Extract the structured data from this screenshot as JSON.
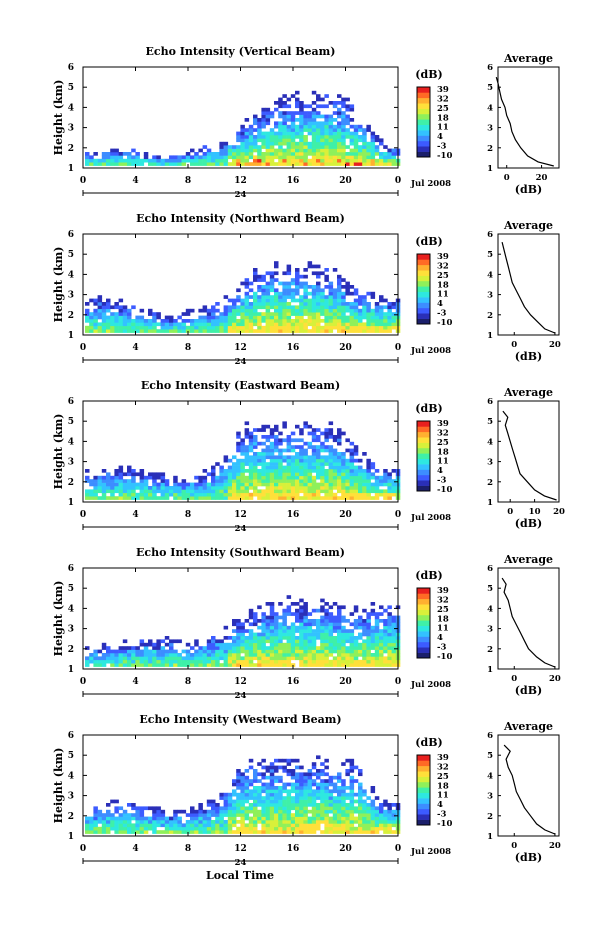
{
  "colors": {
    "colormap": [
      "#1b1f6b",
      "#2a2fb8",
      "#3c5bff",
      "#3d8dff",
      "#33c2ff",
      "#2ee8e0",
      "#3ff0a8",
      "#8ff05a",
      "#d8f03a",
      "#ffe03a",
      "#ffb030",
      "#ff6a25",
      "#e8201e"
    ],
    "axis": "#000000"
  },
  "footer": {
    "xlabel": "Local Time"
  },
  "chart_data": [
    {
      "type": "heatmap",
      "title": "Echo Intensity (Vertical Beam)",
      "ylabel": "Height (km)",
      "ylim": [
        1,
        6
      ],
      "yticks": [
        1,
        2,
        3,
        4,
        5,
        6
      ],
      "xlim": [
        0,
        24
      ],
      "xticks": [
        "0",
        "4",
        "8",
        "12",
        "16",
        "20",
        "0"
      ],
      "date_label": "24",
      "month_label": "Jul 2008",
      "colorbar": {
        "unit": "(dB)",
        "ticks": [
          "39",
          "32",
          "25",
          "18",
          "11",
          "4",
          "-3",
          "-10"
        ]
      },
      "echo_top_km": [
        1.7,
        1.8,
        1.9,
        2.0,
        1.8,
        1.6,
        1.5,
        1.6,
        1.8,
        2.0,
        2.2,
        2.6,
        3.2,
        3.8,
        4.0,
        4.5,
        4.7,
        4.6,
        4.9,
        4.7,
        4.4,
        3.5,
        2.8,
        2.0
      ],
      "average_profile": {
        "title": "Average",
        "xlabel": "(dB)",
        "xlim": [
          -5,
          30
        ],
        "xticks": [
          0,
          20
        ],
        "ylim": [
          1,
          6
        ],
        "yticks": [
          1,
          2,
          3,
          4,
          5,
          6
        ],
        "heights_km": [
          1.1,
          1.3,
          1.6,
          2.0,
          2.4,
          2.8,
          3.2,
          3.6,
          4.0,
          4.4,
          4.8,
          5.2,
          5.5
        ],
        "values_db": [
          27,
          18,
          12,
          8,
          5,
          3,
          2,
          0,
          -1,
          -3,
          -4,
          -5,
          -6
        ]
      }
    },
    {
      "type": "heatmap",
      "title": "Echo Intensity (Northward Beam)",
      "ylabel": "Height (km)",
      "ylim": [
        1,
        6
      ],
      "yticks": [
        1,
        2,
        3,
        4,
        5,
        6
      ],
      "xlim": [
        0,
        24
      ],
      "xticks": [
        "0",
        "4",
        "8",
        "12",
        "16",
        "20",
        "0"
      ],
      "date_label": "24",
      "month_label": "Jul 2008",
      "colorbar": {
        "unit": "(dB)",
        "ticks": [
          "39",
          "32",
          "25",
          "18",
          "11",
          "4",
          "-3",
          "-10"
        ]
      },
      "echo_top_km": [
        2.8,
        2.9,
        3.0,
        2.6,
        2.4,
        2.2,
        1.9,
        2.0,
        2.2,
        2.3,
        2.6,
        3.0,
        3.6,
        4.2,
        4.4,
        4.6,
        4.7,
        4.5,
        4.4,
        4.2,
        3.6,
        3.2,
        3.0,
        2.8
      ],
      "average_profile": {
        "title": "Average",
        "xlabel": "(dB)",
        "xlim": [
          -8,
          22
        ],
        "xticks": [
          0,
          20
        ],
        "ylim": [
          1,
          6
        ],
        "yticks": [
          1,
          2,
          3,
          4,
          5,
          6
        ],
        "heights_km": [
          1.1,
          1.3,
          1.6,
          2.0,
          2.4,
          2.8,
          3.2,
          3.6,
          4.0,
          4.4,
          4.8,
          5.2,
          5.6
        ],
        "values_db": [
          20,
          15,
          12,
          8,
          5,
          3,
          1,
          -1,
          -2,
          -3,
          -4,
          -5,
          -6
        ]
      }
    },
    {
      "type": "heatmap",
      "title": "Echo Intensity (Eastward Beam)",
      "ylabel": "Height (km)",
      "ylim": [
        1,
        6
      ],
      "yticks": [
        1,
        2,
        3,
        4,
        5,
        6
      ],
      "xlim": [
        0,
        24
      ],
      "xticks": [
        "0",
        "4",
        "8",
        "12",
        "16",
        "20",
        "0"
      ],
      "date_label": "24",
      "month_label": "Jul 2008",
      "colorbar": {
        "unit": "(dB)",
        "ticks": [
          "39",
          "32",
          "25",
          "18",
          "11",
          "4",
          "-3",
          "-10"
        ]
      },
      "echo_top_km": [
        2.5,
        2.6,
        2.7,
        2.8,
        2.6,
        2.4,
        2.3,
        2.2,
        2.3,
        2.5,
        2.8,
        3.5,
        4.8,
        5.0,
        4.8,
        4.9,
        5.0,
        4.9,
        5.0,
        4.8,
        4.2,
        3.5,
        2.9,
        2.6
      ],
      "average_profile": {
        "title": "Average",
        "xlabel": "(dB)",
        "xlim": [
          -5,
          20
        ],
        "xticks": [
          0,
          10,
          20
        ],
        "ylim": [
          1,
          6
        ],
        "yticks": [
          1,
          2,
          3,
          4,
          5,
          6
        ],
        "heights_km": [
          1.1,
          1.3,
          1.6,
          2.0,
          2.4,
          2.8,
          3.2,
          3.6,
          4.0,
          4.4,
          4.8,
          5.2,
          5.5
        ],
        "values_db": [
          19,
          14,
          10,
          7,
          4,
          3,
          2,
          1,
          0,
          -1,
          -2,
          -1,
          -3
        ]
      }
    },
    {
      "type": "heatmap",
      "title": "Echo Intensity (Southward Beam)",
      "ylabel": "Height (km)",
      "ylim": [
        1,
        6
      ],
      "yticks": [
        1,
        2,
        3,
        4,
        5,
        6
      ],
      "xlim": [
        0,
        24
      ],
      "xticks": [
        "0",
        "4",
        "8",
        "12",
        "16",
        "20",
        "0"
      ],
      "date_label": "24",
      "month_label": "Jul 2008",
      "colorbar": {
        "unit": "(dB)",
        "ticks": [
          "39",
          "32",
          "25",
          "18",
          "11",
          "4",
          "-3",
          "-10"
        ]
      },
      "echo_top_km": [
        2.0,
        2.1,
        2.2,
        2.3,
        2.4,
        2.6,
        2.5,
        2.4,
        2.3,
        2.4,
        2.8,
        3.2,
        3.6,
        4.0,
        4.2,
        4.5,
        4.6,
        4.4,
        4.5,
        4.3,
        4.1,
        4.0,
        4.2,
        4.3
      ],
      "average_profile": {
        "title": "Average",
        "xlabel": "(dB)",
        "xlim": [
          -8,
          22
        ],
        "xticks": [
          0,
          20
        ],
        "ylim": [
          1,
          6
        ],
        "yticks": [
          1,
          2,
          3,
          4,
          5,
          6
        ],
        "heights_km": [
          1.1,
          1.3,
          1.6,
          2.0,
          2.4,
          2.8,
          3.2,
          3.6,
          4.0,
          4.4,
          4.8,
          5.2,
          5.5
        ],
        "values_db": [
          20,
          15,
          11,
          7,
          5,
          3,
          1,
          -1,
          -2,
          -3,
          -5,
          -4,
          -6
        ]
      }
    },
    {
      "type": "heatmap",
      "title": "Echo Intensity (Westward Beam)",
      "ylabel": "Height (km)",
      "ylim": [
        1,
        6
      ],
      "yticks": [
        1,
        2,
        3,
        4,
        5,
        6
      ],
      "xlim": [
        0,
        24
      ],
      "xticks": [
        "0",
        "4",
        "8",
        "12",
        "16",
        "20",
        "0"
      ],
      "date_label": "24",
      "month_label": "Jul 2008",
      "colorbar": {
        "unit": "(dB)",
        "ticks": [
          "39",
          "32",
          "25",
          "18",
          "11",
          "4",
          "-3",
          "-10"
        ]
      },
      "echo_top_km": [
        2.3,
        2.5,
        2.7,
        2.9,
        2.6,
        2.4,
        2.3,
        2.2,
        2.4,
        2.6,
        3.0,
        3.5,
        4.8,
        4.9,
        4.8,
        4.9,
        5.0,
        4.9,
        4.8,
        4.7,
        4.9,
        4.5,
        3.2,
        2.6
      ],
      "average_profile": {
        "title": "Average",
        "xlabel": "(dB)",
        "xlim": [
          -8,
          22
        ],
        "xticks": [
          0,
          20
        ],
        "ylim": [
          1,
          6
        ],
        "yticks": [
          1,
          2,
          3,
          4,
          5,
          6
        ],
        "heights_km": [
          1.1,
          1.3,
          1.6,
          2.0,
          2.4,
          2.8,
          3.2,
          3.6,
          4.0,
          4.4,
          4.8,
          5.2,
          5.5
        ],
        "values_db": [
          20,
          15,
          11,
          8,
          5,
          3,
          1,
          0,
          -1,
          -3,
          -4,
          -2,
          -5
        ]
      }
    }
  ]
}
